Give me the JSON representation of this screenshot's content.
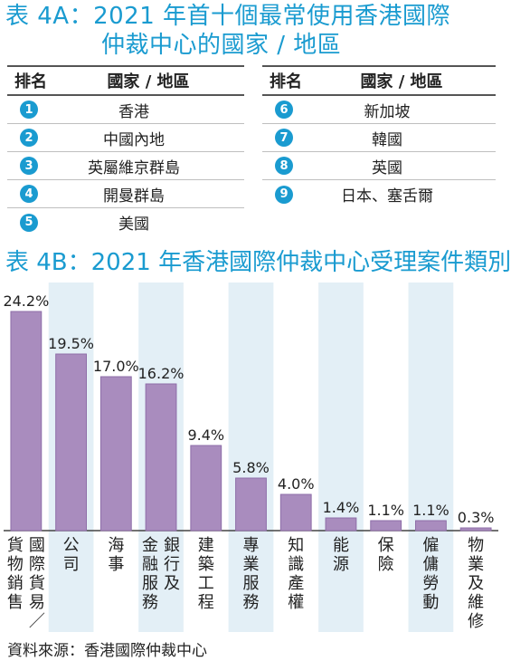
{
  "table_4a": {
    "title_line1": "表 4A：2021 年首十個最常使用香港國際",
    "title_line2": "仲裁中心的國家 / 地區",
    "header_rank": "排名",
    "header_place": "國家 / 地區",
    "left_rows": [
      {
        "rank": "1",
        "place": "香港"
      },
      {
        "rank": "2",
        "place": "中國內地"
      },
      {
        "rank": "3",
        "place": "英屬維京群島"
      },
      {
        "rank": "4",
        "place": "開曼群島"
      },
      {
        "rank": "5",
        "place": "美國"
      }
    ],
    "right_rows": [
      {
        "rank": "6",
        "place": "新加坡"
      },
      {
        "rank": "7",
        "place": "韓國"
      },
      {
        "rank": "8",
        "place": "英國"
      },
      {
        "rank": "9",
        "place": "日本、塞舌爾"
      }
    ]
  },
  "colors": {
    "accent": "#1a9bd0",
    "bar": "#a98cbe",
    "bar_stroke": "#8e6ea8",
    "stripe": "#e3eff6"
  },
  "chart_data": {
    "type": "bar",
    "title": "表 4B：2021 年香港國際仲裁中心受理案件類別",
    "categories": [
      "貨物銷售",
      "國際貨易／",
      "公司",
      "海事",
      "金融服務",
      "銀行及",
      "建築工程",
      "專業服務",
      "知識產權",
      "能源",
      "保險",
      "僱傭勞動",
      "物業及維修"
    ],
    "bars": [
      {
        "label": "24.2%",
        "value": 24.2,
        "lines": [
          "貨物銷售",
          "國際貨易／"
        ]
      },
      {
        "label": "19.5%",
        "value": 19.5,
        "lines": [
          "公司"
        ]
      },
      {
        "label": "17.0%",
        "value": 17.0,
        "lines": [
          "海事"
        ]
      },
      {
        "label": "16.2%",
        "value": 16.2,
        "lines": [
          "金融服務",
          "銀行及"
        ]
      },
      {
        "label": "9.4%",
        "value": 9.4,
        "lines": [
          "建築工程"
        ]
      },
      {
        "label": "5.8%",
        "value": 5.8,
        "lines": [
          "專業服務"
        ]
      },
      {
        "label": "4.0%",
        "value": 4.0,
        "lines": [
          "知識產權"
        ]
      },
      {
        "label": "1.4%",
        "value": 1.4,
        "lines": [
          "能源"
        ]
      },
      {
        "label": "1.1%",
        "value": 1.1,
        "lines": [
          "保險"
        ]
      },
      {
        "label": "1.1%",
        "value": 1.1,
        "lines": [
          "僱傭勞動"
        ]
      },
      {
        "label": "0.3%",
        "value": 0.3,
        "lines": [
          "物業及維修"
        ]
      }
    ],
    "ylim": [
      0,
      25
    ]
  },
  "source": "資料來源：香港國際仲裁中心"
}
